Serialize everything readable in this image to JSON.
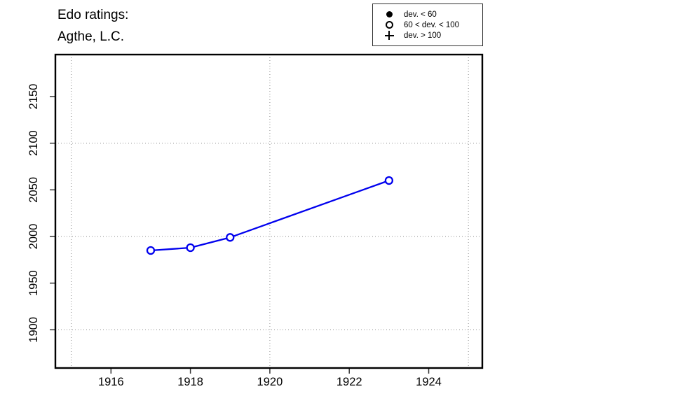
{
  "title": {
    "line1": "Edo ratings:",
    "line2": "Agthe, L.C."
  },
  "legend": {
    "items": [
      {
        "symbol": "filled-circle-icon",
        "label": "dev. < 60"
      },
      {
        "symbol": "open-circle-icon",
        "label": "60 < dev. < 100"
      },
      {
        "symbol": "plus-icon",
        "label": "dev. > 100"
      }
    ]
  },
  "chart_data": {
    "type": "line",
    "title": "Edo ratings: Agthe, L.C.",
    "xlabel": "",
    "ylabel": "",
    "xlim": [
      1914.6,
      1925.35
    ],
    "ylim": [
      1859,
      2195
    ],
    "x_ticks": [
      1916,
      1918,
      1920,
      1922,
      1924
    ],
    "y_ticks": [
      1900,
      1950,
      2000,
      2050,
      2100,
      2150
    ],
    "grid_x": [
      1915,
      1920,
      1925
    ],
    "grid_y": [
      1900,
      2000,
      2100
    ],
    "grid_on": true,
    "legend_position": "top-right-outside",
    "series": [
      {
        "name": "Agthe, L.C.",
        "marker": "open-circle",
        "color": "#0000EE",
        "points": [
          {
            "x": 1917,
            "y": 1985
          },
          {
            "x": 1918,
            "y": 1988
          },
          {
            "x": 1919,
            "y": 1999
          },
          {
            "x": 1923,
            "y": 2060
          }
        ]
      }
    ]
  },
  "colors": {
    "line": "#0000EE",
    "grid": "#8c8c8c",
    "frame": "#000000",
    "text": "#000000",
    "background": "#ffffff"
  }
}
